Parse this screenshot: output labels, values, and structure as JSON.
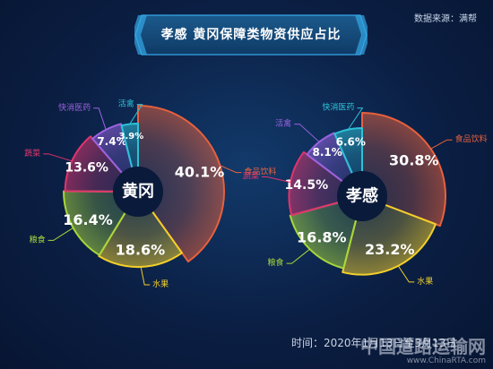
{
  "source": "数据来源：满帮",
  "title": "孝感  黄冈保障类物资供应占比",
  "footer": "时间：2020年1月13日至3月13日",
  "watermark": {
    "main": "中国道路运输网",
    "sub": "www.ChinaRTA.com"
  },
  "chart_data": [
    {
      "type": "pie",
      "center_label": "黄冈",
      "slices": [
        {
          "name": "食品饮料",
          "value": 40.1,
          "label": "40.1%",
          "color": "#e8613c"
        },
        {
          "name": "水果",
          "value": 18.6,
          "label": "18.6%",
          "color": "#f2cf2b"
        },
        {
          "name": "粮食",
          "value": 16.4,
          "label": "16.4%",
          "color": "#a8d63b"
        },
        {
          "name": "蔬菜",
          "value": 13.6,
          "label": "13.6%",
          "color": "#e0356d"
        },
        {
          "name": "快消医药",
          "value": 7.4,
          "label": "7.4%",
          "color": "#9a63e0"
        },
        {
          "name": "活禽",
          "value": 3.9,
          "label": "3.9%",
          "color": "#2dc1d6"
        }
      ]
    },
    {
      "type": "pie",
      "center_label": "孝感",
      "slices": [
        {
          "name": "食品饮料",
          "value": 30.8,
          "label": "30.8%",
          "color": "#e8613c"
        },
        {
          "name": "水果",
          "value": 23.2,
          "label": "23.2%",
          "color": "#f2cf2b"
        },
        {
          "name": "粮食",
          "value": 16.8,
          "label": "16.8%",
          "color": "#a8d63b"
        },
        {
          "name": "蔬菜",
          "value": 14.5,
          "label": "14.5%",
          "color": "#e0356d"
        },
        {
          "name": "活禽",
          "value": 8.1,
          "label": "8.1%",
          "color": "#9a63e0"
        },
        {
          "name": "快消医药",
          "value": 6.6,
          "label": "6.6%",
          "color": "#2dc1d6"
        }
      ]
    }
  ]
}
